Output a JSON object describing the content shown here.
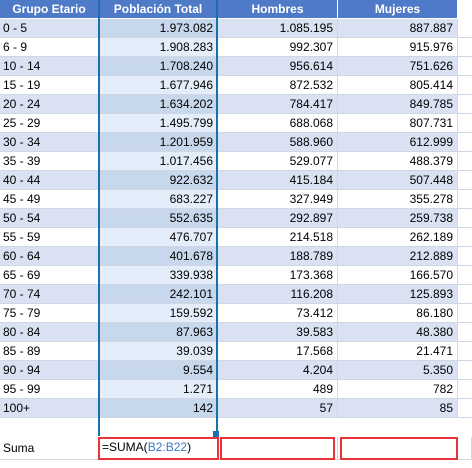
{
  "headers": [
    "Grupo Etario",
    "Población Total",
    "Hombres",
    "Mujeres"
  ],
  "rows": [
    [
      "0 - 5",
      "1.973.082",
      "1.085.195",
      "887.887"
    ],
    [
      "6 - 9",
      "1.908.283",
      "992.307",
      "915.976"
    ],
    [
      "10 - 14",
      "1.708.240",
      "956.614",
      "751.626"
    ],
    [
      "15 - 19",
      "1.677.946",
      "872.532",
      "805.414"
    ],
    [
      "20 - 24",
      "1.634.202",
      "784.417",
      "849.785"
    ],
    [
      "25 - 29",
      "1.495.799",
      "688.068",
      "807.731"
    ],
    [
      "30 - 34",
      "1.201.959",
      "588.960",
      "612.999"
    ],
    [
      "35 - 39",
      "1.017.456",
      "529.077",
      "488.379"
    ],
    [
      "40 - 44",
      "922.632",
      "415.184",
      "507.448"
    ],
    [
      "45 - 49",
      "683.227",
      "327.949",
      "355.278"
    ],
    [
      "50 - 54",
      "552.635",
      "292.897",
      "259.738"
    ],
    [
      "55 - 59",
      "476.707",
      "214.518",
      "262.189"
    ],
    [
      "60 - 64",
      "401.678",
      "188.789",
      "212.889"
    ],
    [
      "65 - 69",
      "339.938",
      "173.368",
      "166.570"
    ],
    [
      "70 - 74",
      "242.101",
      "116.208",
      "125.893"
    ],
    [
      "75 - 79",
      "159.592",
      "73.412",
      "86.180"
    ],
    [
      "80 - 84",
      "87.963",
      "39.583",
      "48.380"
    ],
    [
      "85 - 89",
      "39.039",
      "17.568",
      "21.471"
    ],
    [
      "90 - 94",
      "9.554",
      "4.204",
      "5.350"
    ],
    [
      "95 - 99",
      "1.271",
      "489",
      "782"
    ],
    [
      "100+",
      "142",
      "57",
      "85"
    ]
  ],
  "sum_row": {
    "label": "Suma",
    "formula_prefix": "=SUMA(",
    "formula_range": "B2:B22",
    "formula_suffix": ")"
  },
  "colors": {
    "header": "#4f7ac7",
    "band": "#d9e1f2",
    "selection": "#1a6fb0",
    "highlight": "#e8333a",
    "range_ref": "#3b78c4"
  }
}
